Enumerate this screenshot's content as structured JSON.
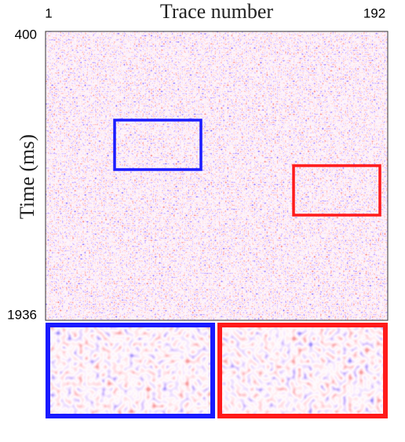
{
  "chart_data": {
    "type": "heatmap",
    "title": "Trace number",
    "y_label": "Time (ms)",
    "xlim": [
      1,
      192
    ],
    "xticks": [
      1,
      192
    ],
    "ylim": [
      400,
      1936
    ],
    "yticks": [
      400,
      1936
    ]
  }
}
